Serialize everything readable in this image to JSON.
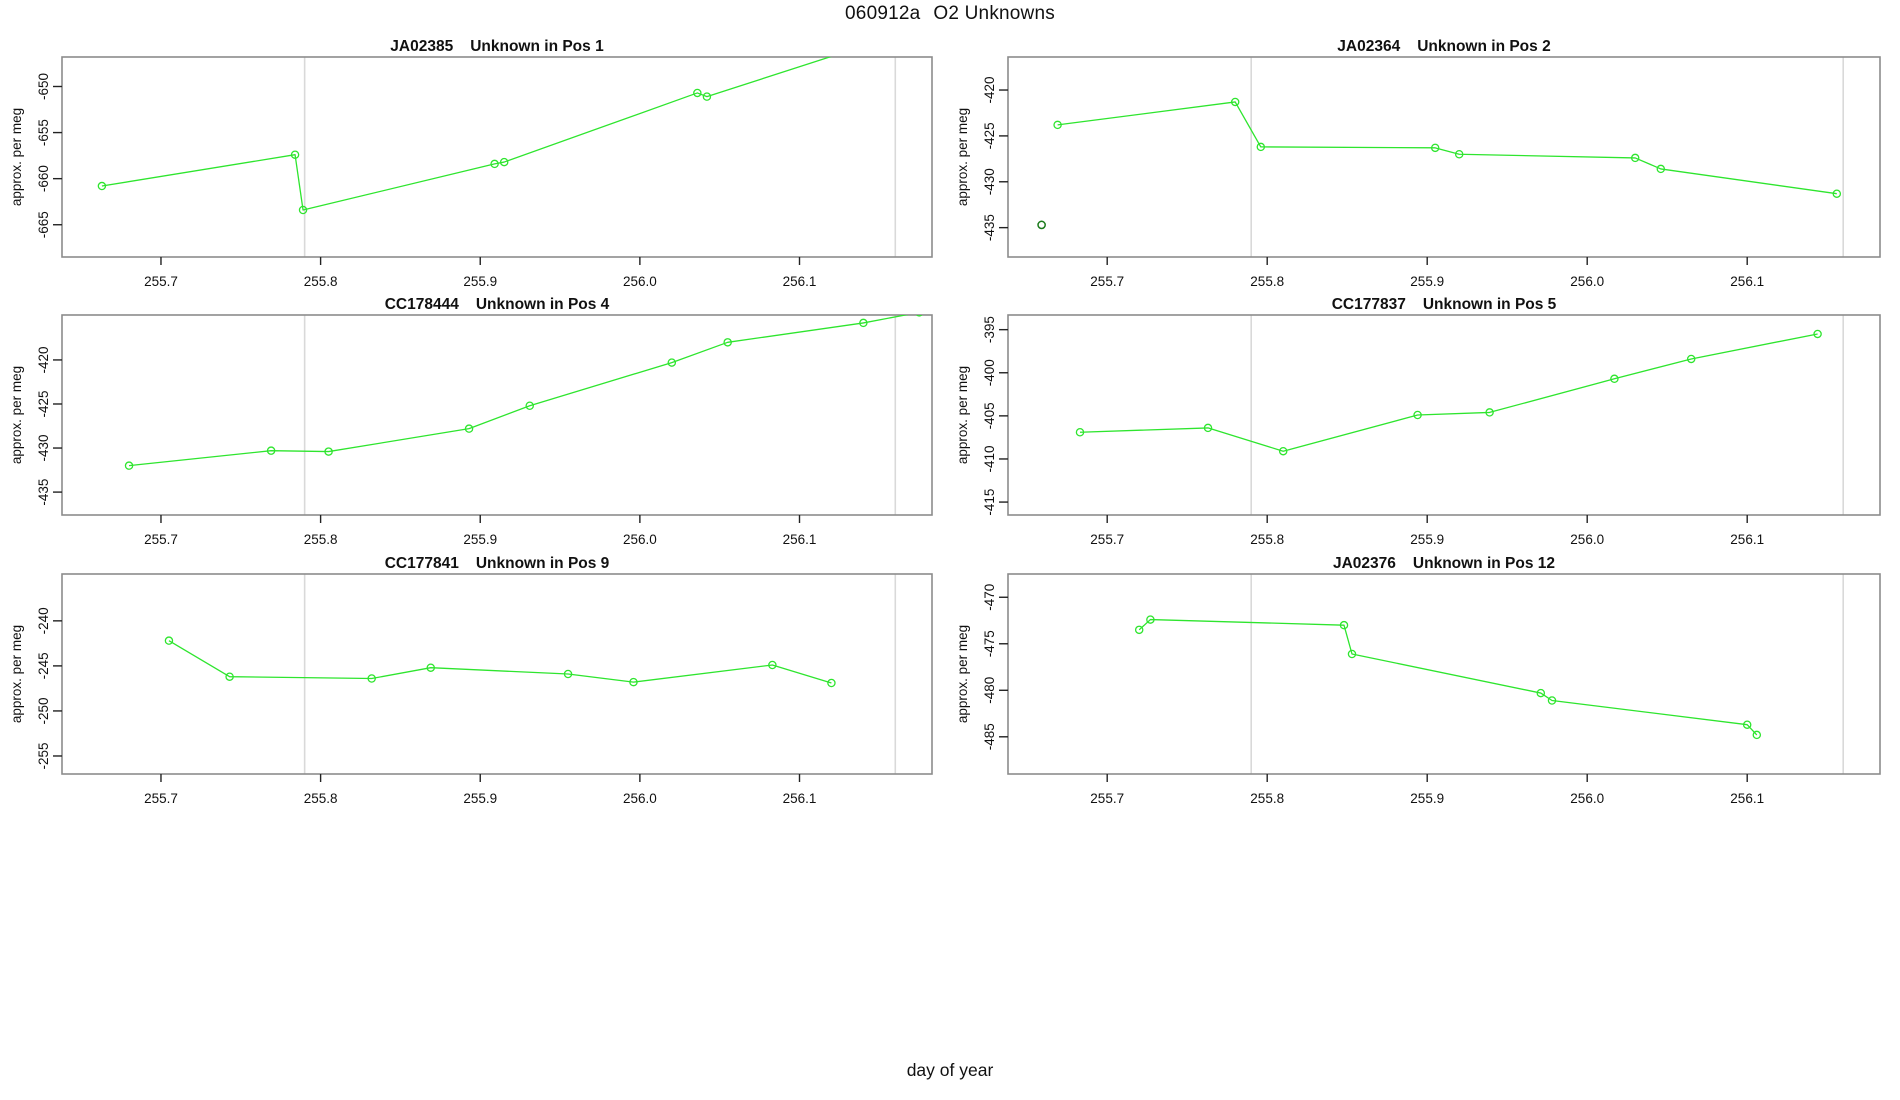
{
  "page_title": {
    "run_id": "060912a",
    "subject": "O2 Unknowns"
  },
  "xlabel": "day of year",
  "colors": {
    "series_green": "#2ee52e",
    "isolated_dark_green": "#1b7a1b",
    "vline_gray": "#d9d9d9",
    "frame_gray": "#8c8c8c",
    "tick_black": "#222222",
    "text_black": "#111111"
  },
  "layout_hints": {
    "grid": "3 rows x 2 cols",
    "marker": "open circle",
    "y_tick_labels_rotated": true,
    "shared_xlabel_bottom_center": true
  },
  "chart_data": [
    {
      "type": "line",
      "sample_id": "JA02385",
      "position_label": "Unknown in Pos 1",
      "title": "JA02385   Unknown in Pos 1",
      "ylabel": "approx. per meg",
      "xlim": [
        255.638,
        256.183
      ],
      "ylim": [
        -668.5,
        -646.8
      ],
      "xticks": [
        255.7,
        255.8,
        255.9,
        256.0,
        256.1
      ],
      "xtick_labels": [
        "255.7",
        "255.8",
        "255.9",
        "256.0",
        "256.1"
      ],
      "yticks": [
        -650,
        -655,
        -660,
        -665
      ],
      "vlines": [
        255.79,
        256.16
      ],
      "series": [
        {
          "name": "unknown-pos-1",
          "points": [
            [
              255.663,
              -660.8
            ],
            [
              255.784,
              -657.4
            ],
            [
              255.789,
              -663.4
            ],
            [
              255.909,
              -658.4
            ],
            [
              255.915,
              -658.2
            ],
            [
              256.036,
              -650.7
            ],
            [
              256.042,
              -651.1
            ],
            [
              256.16,
              -644.5
            ]
          ]
        }
      ],
      "isolated_points": []
    },
    {
      "type": "line",
      "sample_id": "JA02364",
      "position_label": "Unknown in Pos 2",
      "title": "JA02364   Unknown in Pos 2",
      "ylabel": "approx. per meg",
      "xlim": [
        255.638,
        256.183
      ],
      "ylim": [
        -438.2,
        -416.4
      ],
      "xticks": [
        255.7,
        255.8,
        255.9,
        256.0,
        256.1
      ],
      "xtick_labels": [
        "255.7",
        "255.8",
        "255.9",
        "256.0",
        "256.1"
      ],
      "yticks": [
        -420,
        -425,
        -430,
        -435
      ],
      "vlines": [
        255.79,
        256.16
      ],
      "series": [
        {
          "name": "unknown-pos-2",
          "points": [
            [
              255.669,
              -423.8
            ],
            [
              255.78,
              -421.3
            ],
            [
              255.796,
              -426.2
            ],
            [
              255.905,
              -426.3
            ],
            [
              255.92,
              -427.0
            ],
            [
              256.03,
              -427.4
            ],
            [
              256.046,
              -428.6
            ],
            [
              256.156,
              -431.3
            ]
          ]
        }
      ],
      "isolated_points": [
        {
          "x": 255.659,
          "y": -434.7,
          "color": "isolated_dark_green"
        }
      ]
    },
    {
      "type": "line",
      "sample_id": "CC178444",
      "position_label": "Unknown in Pos 4",
      "title": "CC178444   Unknown in Pos 4",
      "ylabel": "approx. per meg",
      "xlim": [
        255.638,
        256.183
      ],
      "ylim": [
        -437.6,
        -414.9
      ],
      "xticks": [
        255.7,
        255.8,
        255.9,
        256.0,
        256.1
      ],
      "xtick_labels": [
        "255.7",
        "255.8",
        "255.9",
        "256.0",
        "256.1"
      ],
      "yticks": [
        -420,
        -425,
        -430,
        -435
      ],
      "vlines": [
        255.79,
        256.16
      ],
      "series": [
        {
          "name": "unknown-pos-4",
          "points": [
            [
              255.68,
              -432.0
            ],
            [
              255.769,
              -430.3
            ],
            [
              255.805,
              -430.4
            ],
            [
              255.893,
              -427.8
            ],
            [
              255.931,
              -425.2
            ],
            [
              256.02,
              -420.3
            ],
            [
              256.055,
              -418.0
            ],
            [
              256.14,
              -415.8
            ],
            [
              256.175,
              -414.6
            ]
          ]
        }
      ],
      "isolated_points": []
    },
    {
      "type": "line",
      "sample_id": "CC177837",
      "position_label": "Unknown in Pos 5",
      "title": "CC177837   Unknown in Pos 5",
      "ylabel": "approx. per meg",
      "xlim": [
        255.638,
        256.183
      ],
      "ylim": [
        -416.5,
        -393.3
      ],
      "xticks": [
        255.7,
        255.8,
        255.9,
        256.0,
        256.1
      ],
      "xtick_labels": [
        "255.7",
        "255.8",
        "255.9",
        "256.0",
        "256.1"
      ],
      "yticks": [
        -395,
        -400,
        -405,
        -410,
        -415
      ],
      "vlines": [
        255.79,
        256.16
      ],
      "series": [
        {
          "name": "unknown-pos-5",
          "points": [
            [
              255.683,
              -406.9
            ],
            [
              255.763,
              -406.4
            ],
            [
              255.81,
              -409.1
            ],
            [
              255.894,
              -404.9
            ],
            [
              255.939,
              -404.6
            ],
            [
              256.017,
              -400.7
            ],
            [
              256.065,
              -398.4
            ],
            [
              256.144,
              -395.5
            ]
          ]
        }
      ],
      "isolated_points": []
    },
    {
      "type": "line",
      "sample_id": "CC177841",
      "position_label": "Unknown in Pos 9",
      "title": "CC177841   Unknown in Pos 9",
      "ylabel": "approx. per meg",
      "xlim": [
        255.638,
        256.183
      ],
      "ylim": [
        -257.0,
        -234.8
      ],
      "xticks": [
        255.7,
        255.8,
        255.9,
        256.0,
        256.1
      ],
      "xtick_labels": [
        "255.7",
        "255.8",
        "255.9",
        "256.0",
        "256.1"
      ],
      "yticks": [
        -240,
        -245,
        -250,
        -255
      ],
      "vlines": [
        255.79,
        256.16
      ],
      "series": [
        {
          "name": "unknown-pos-9",
          "points": [
            [
              255.705,
              -242.2
            ],
            [
              255.743,
              -246.2
            ],
            [
              255.832,
              -246.4
            ],
            [
              255.869,
              -245.2
            ],
            [
              255.955,
              -245.9
            ],
            [
              255.996,
              -246.8
            ],
            [
              256.083,
              -244.9
            ],
            [
              256.12,
              -246.9
            ]
          ]
        }
      ],
      "isolated_points": []
    },
    {
      "type": "line",
      "sample_id": "JA02376",
      "position_label": "Unknown in Pos 12",
      "title": "JA02376   Unknown in Pos 12",
      "ylabel": "approx. per meg",
      "xlim": [
        255.638,
        256.183
      ],
      "ylim": [
        -489.0,
        -467.5
      ],
      "xticks": [
        255.7,
        255.8,
        255.9,
        256.0,
        256.1
      ],
      "xtick_labels": [
        "255.7",
        "255.8",
        "255.9",
        "256.0",
        "256.1"
      ],
      "yticks": [
        -470,
        -475,
        -480,
        -485
      ],
      "vlines": [
        255.79,
        256.16
      ],
      "series": [
        {
          "name": "unknown-pos-12",
          "points": [
            [
              255.72,
              -473.5
            ],
            [
              255.727,
              -472.4
            ],
            [
              255.848,
              -473.0
            ],
            [
              255.853,
              -476.1
            ],
            [
              255.971,
              -480.3
            ],
            [
              255.978,
              -481.1
            ],
            [
              256.1,
              -483.7
            ],
            [
              256.106,
              -484.8
            ]
          ]
        }
      ],
      "isolated_points": []
    }
  ]
}
